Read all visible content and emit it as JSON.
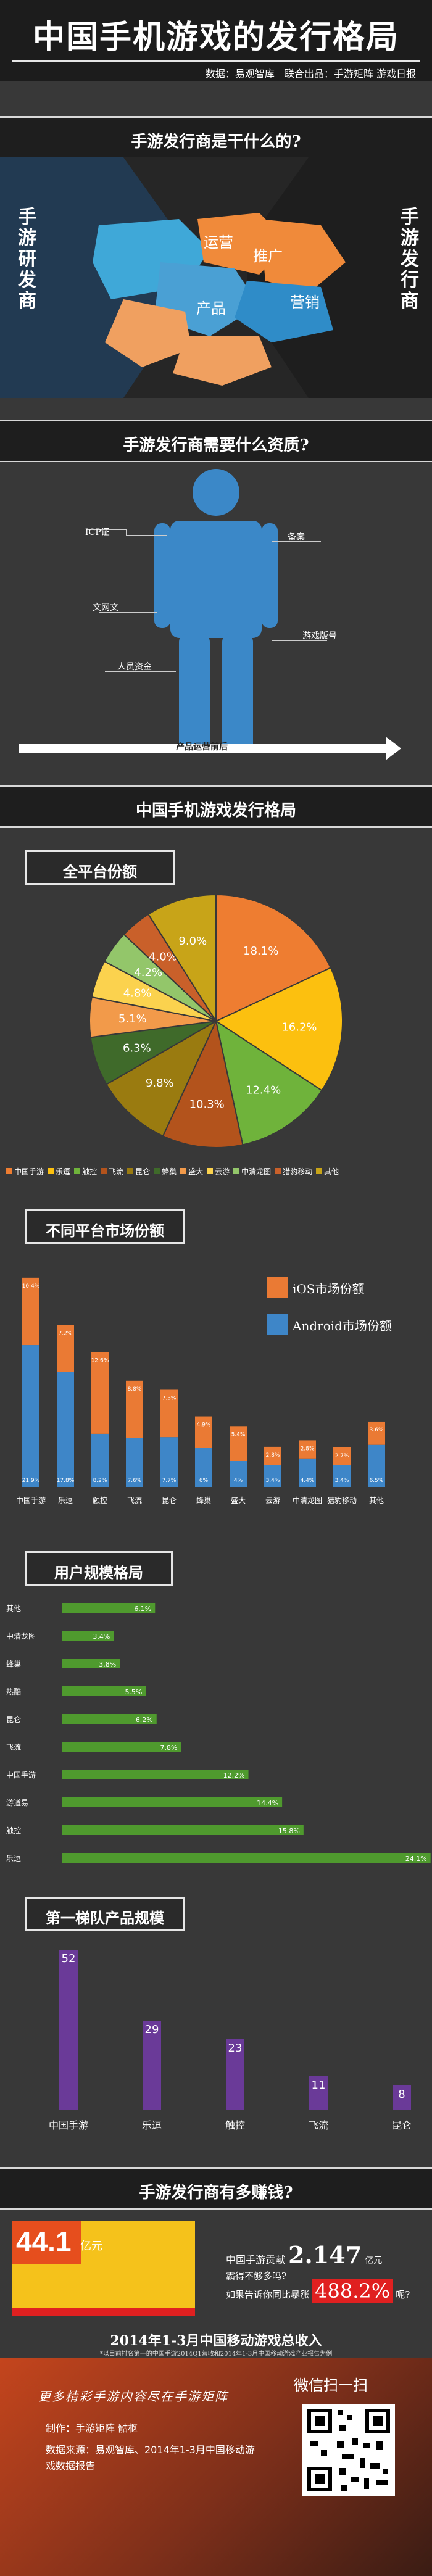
{
  "header": {
    "title": "中国手机游戏的发行格局",
    "credit": "数据：易观智库　联合出品：手游矩阵 游戏日报"
  },
  "section1": {
    "title": "手游发行商是干什么的?",
    "left_label": "手游研发商",
    "right_label": "手游发行商",
    "puzzle_labels": [
      "运营",
      "推广",
      "产品",
      "营销"
    ]
  },
  "section2": {
    "title": "手游发行商需要什么资质?",
    "labels": [
      "ICP证",
      "备案",
      "文网文",
      "游戏版号",
      "人员资金"
    ],
    "arrow_label": "产品运营前后"
  },
  "section3": {
    "title": "中国手机游戏发行格局"
  },
  "colors": {
    "orange": "#ea7a34",
    "blue": "#3e86c8",
    "purple": "#6a3a98",
    "green": "#5fa13c",
    "yellow": "#f5c21b"
  },
  "chart_data": [
    {
      "type": "pie",
      "title": "全平台份额",
      "slices": [
        {
          "name": "中国手游",
          "value": 18.1,
          "label": "18.1%",
          "color": "#ee7d31"
        },
        {
          "name": "乐逗",
          "value": 16.2,
          "label": "16.2%",
          "color": "#fcc00f"
        },
        {
          "name": "触控",
          "value": 12.4,
          "label": "12.4%",
          "color": "#6fb33b"
        },
        {
          "name": "飞流",
          "value": 10.3,
          "label": "10.3%",
          "color": "#b3531c"
        },
        {
          "name": "昆仑",
          "value": 9.8,
          "label": "9.8%",
          "color": "#9a7b10"
        },
        {
          "name": "蜂巢",
          "value": 6.3,
          "label": "6.3%",
          "color": "#3f6a2a"
        },
        {
          "name": "盛大",
          "value": 5.1,
          "label": "5.1%",
          "color": "#f29a4a"
        },
        {
          "name": "云游",
          "value": 4.8,
          "label": "4.8%",
          "color": "#fbd24e"
        },
        {
          "name": "中清龙图",
          "value": 4.2,
          "label": "4.2%",
          "color": "#93c66a"
        },
        {
          "name": "猎豹移动",
          "value": 4.0,
          "label": "4.0%",
          "color": "#c9602a"
        },
        {
          "name": "其他",
          "value": 9.0,
          "label": "9.0%",
          "color": "#c8a418"
        }
      ],
      "legend": [
        "中国手游",
        "乐逗",
        "触控",
        "飞流",
        "昆仑",
        "蜂巢",
        "盛大",
        "云游",
        "中清龙图",
        "猎豹移动",
        "其他"
      ]
    },
    {
      "type": "bar",
      "title": "不同平台市场份额",
      "categories": [
        "中国手游",
        "乐逗",
        "触控",
        "飞流",
        "昆仑",
        "蜂巢",
        "盛大",
        "云游",
        "中清龙图",
        "猎豹移动",
        "其他"
      ],
      "series": [
        {
          "name": "Android市场份额",
          "values": [
            21.9,
            17.8,
            8.2,
            7.6,
            7.7,
            6.0,
            4.0,
            3.4,
            4.4,
            3.4,
            6.5
          ],
          "color": "#3e86c8"
        },
        {
          "name": "iOS市场份额",
          "values": [
            10.4,
            7.2,
            12.6,
            8.8,
            7.3,
            4.9,
            5.4,
            2.8,
            2.8,
            2.7,
            3.6
          ],
          "color": "#ea7a34"
        }
      ],
      "value_labels": [
        "10.4%",
        "7.2%",
        "12.6%",
        "8.8%",
        "7.3%",
        "",
        "",
        "",
        "",
        "",
        "",
        "21.9%",
        "17.8%"
      ],
      "legend": [
        "iOS市场份额",
        "Android市场份额"
      ]
    },
    {
      "type": "bar",
      "title": "用户规模格局",
      "orientation": "horizontal",
      "categories": [
        "其他",
        "中清龙图",
        "蜂巢",
        "热酷",
        "昆仑",
        "飞流",
        "中国手游",
        "游道易",
        "触控",
        "乐逗"
      ],
      "values": [
        6.1,
        3.4,
        3.8,
        5.5,
        6.2,
        7.8,
        12.2,
        14.4,
        15.8,
        24.1
      ],
      "labels": [
        "6.1%",
        "3.4%",
        "3.8%",
        "5.5%",
        "6.2%",
        "7.8%",
        "12.2%",
        "14.4%",
        "15.8%",
        "24.1%"
      ],
      "color": "#4f9a2e"
    },
    {
      "type": "bar",
      "title": "第一梯队产品规模",
      "categories": [
        "中国手游",
        "乐逗",
        "触控",
        "飞流",
        "昆仑"
      ],
      "values": [
        52,
        29,
        23,
        11,
        8
      ],
      "color": "#6a3a98"
    }
  ],
  "section4": {
    "title": "手游发行商有多赚钱?",
    "total_value": "44.1",
    "total_unit": "亿元",
    "line1_prefix": "中国手游贡献",
    "line1_value": "2.147",
    "line1_unit": "亿元",
    "line2": "霸得不够多吗?",
    "line3_prefix": "如果告诉你同比暴涨",
    "line3_value": "488.2%",
    "line3_suffix": "呢?",
    "caption": "2014年1-3月中国移动游戏总收入",
    "footnote": "*以目前排名第一的中国手游2014Q1营收和2014年1-3月中国移动游戏产业报告为例"
  },
  "footer": {
    "slogan": "更多精彩手游内容尽在手游矩阵",
    "maker": "制作：手游矩阵 骷枢",
    "source": "数据来源：易观智库、2014年1-3月中国移动游戏数据报告",
    "wechat": "微信扫一扫"
  }
}
